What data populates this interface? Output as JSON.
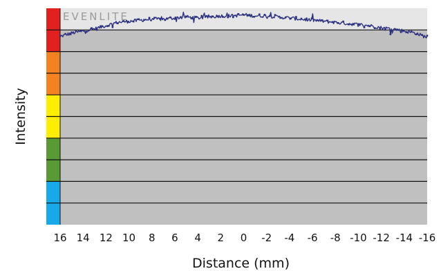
{
  "chart_data": {
    "type": "line",
    "title": "",
    "brand_label": "EVENLITE",
    "xlabel": "Distance (mm)",
    "ylabel": "Intensity",
    "x_ticks": [
      "16",
      "14",
      "12",
      "10",
      "8",
      "6",
      "4",
      "2",
      "0",
      "-2",
      "-4",
      "-6",
      "-8",
      "-10",
      "-12",
      "-14",
      "-16"
    ],
    "xlim": [
      16,
      -16
    ],
    "ylim": [
      0,
      100
    ],
    "upper_band_range": [
      90,
      100
    ],
    "grid": true,
    "color_bands": [
      {
        "name": "red",
        "color": "#e2201f",
        "range": [
          80,
          100
        ]
      },
      {
        "name": "orange",
        "color": "#f58220",
        "range": [
          60,
          80
        ]
      },
      {
        "name": "yellow",
        "color": "#ffee00",
        "range": [
          40,
          60
        ]
      },
      {
        "name": "green",
        "color": "#5a9a35",
        "range": [
          20,
          40
        ]
      },
      {
        "name": "blue",
        "color": "#18a9e8",
        "range": [
          0,
          20
        ]
      }
    ],
    "series": [
      {
        "color": "#2b2f7f",
        "x": [
          16,
          15,
          14,
          13,
          12,
          11,
          10,
          9,
          8,
          7,
          6,
          5,
          4,
          3,
          2,
          1,
          0,
          -1,
          -2,
          -3,
          -4,
          -5,
          -6,
          -7,
          -8,
          -9,
          -10,
          -11,
          -12,
          -13,
          -14,
          -15,
          -16
        ],
        "y": [
          87,
          88.5,
          89.5,
          90.5,
          92,
          93.5,
          94,
          94.5,
          95,
          95,
          95.5,
          96,
          95.5,
          96,
          96.5,
          96.5,
          97,
          96.5,
          96.5,
          96,
          95.5,
          95,
          94.5,
          94,
          93.5,
          93,
          92.5,
          92,
          91,
          90.5,
          89.5,
          88.5,
          86.5
        ]
      }
    ]
  },
  "colors": {
    "plot_background": "#c0c0c0",
    "upper_band": "#e6e6e6",
    "gridline": "#111111",
    "text": "#111111"
  }
}
